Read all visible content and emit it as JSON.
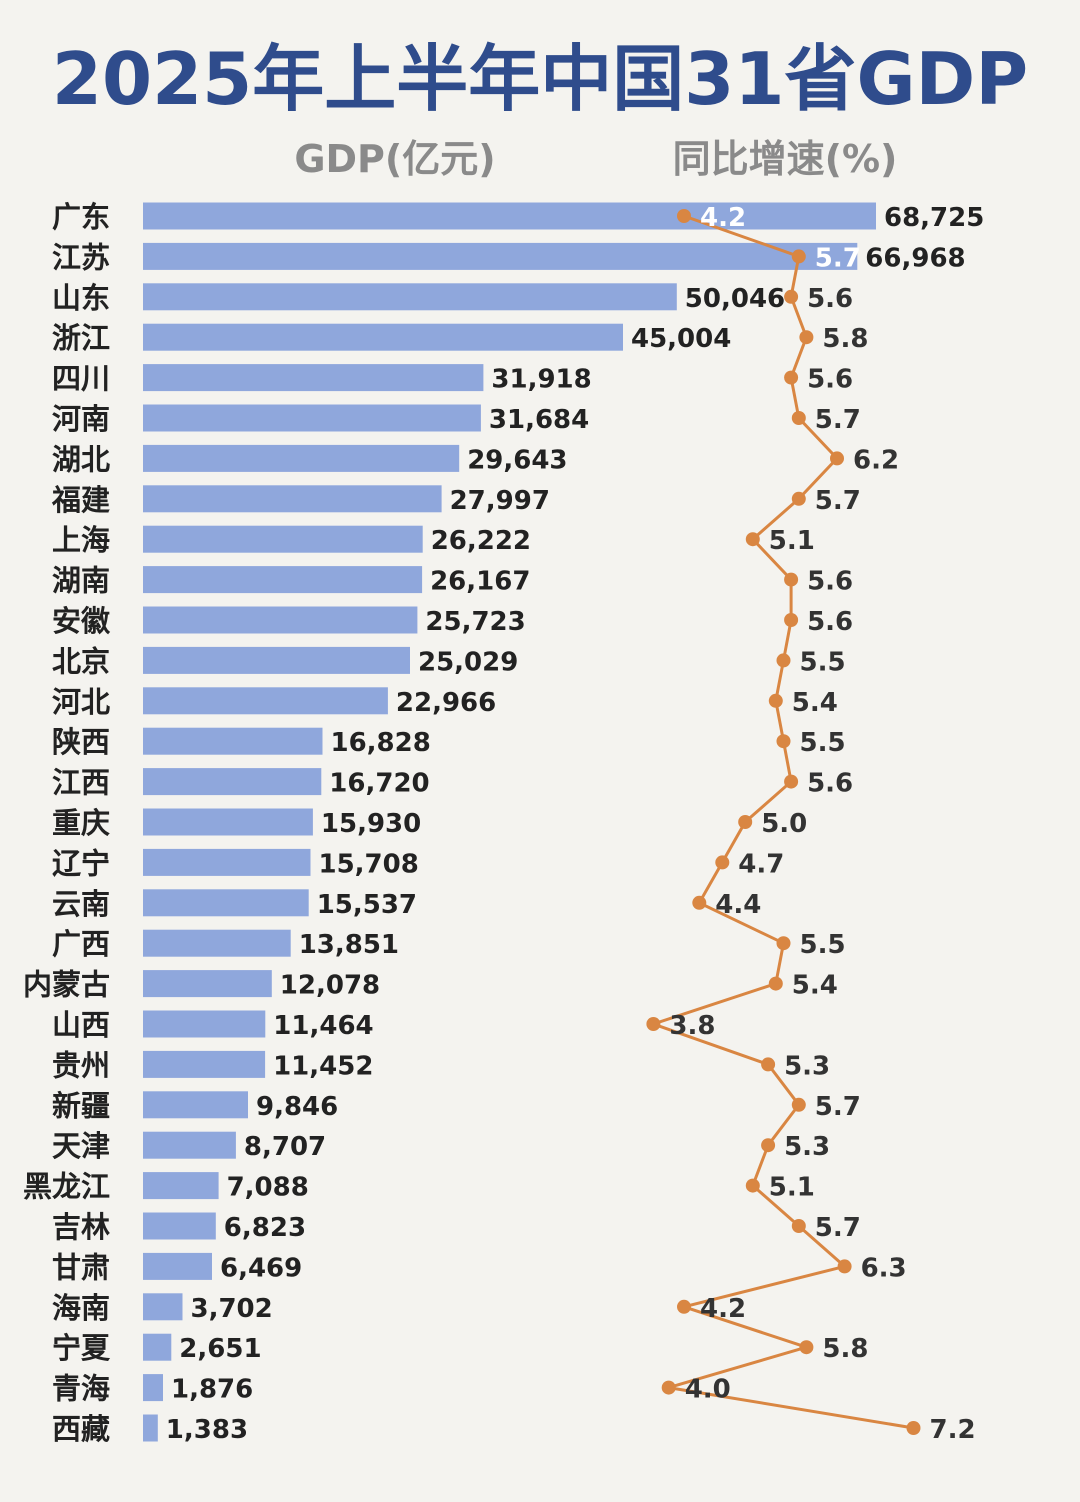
{
  "chart_data": {
    "type": "bar",
    "title": "2025年上半年中国31省GDP",
    "bar_header": "GDP(亿元)",
    "line_header": "同比增速(%)",
    "colors": {
      "bar": "#8fa7dc",
      "line": "#d98642",
      "title": "#2f4c8c"
    },
    "categories": [
      "广东",
      "江苏",
      "山东",
      "浙江",
      "四川",
      "河南",
      "湖北",
      "福建",
      "上海",
      "湖南",
      "安徽",
      "北京",
      "河北",
      "陕西",
      "江西",
      "重庆",
      "辽宁",
      "云南",
      "广西",
      "内蒙古",
      "山西",
      "贵州",
      "新疆",
      "天津",
      "黑龙江",
      "吉林",
      "甘肃",
      "海南",
      "宁夏",
      "青海",
      "西藏"
    ],
    "series": [
      {
        "name": "GDP(亿元)",
        "type": "bar",
        "values": [
          68725,
          66968,
          50046,
          45004,
          31918,
          31684,
          29643,
          27997,
          26222,
          26167,
          25723,
          25029,
          22966,
          16828,
          16720,
          15930,
          15708,
          15537,
          13851,
          12078,
          11464,
          11452,
          9846,
          8707,
          7088,
          6823,
          6469,
          3702,
          2651,
          1876,
          1383
        ],
        "labels": [
          "68,725",
          "66,968",
          "50,046",
          "45,004",
          "31,918",
          "31,684",
          "29,643",
          "27,997",
          "26,222",
          "26,167",
          "25,723",
          "25,029",
          "22,966",
          "16,828",
          "16,720",
          "15,930",
          "15,708",
          "15,537",
          "13,851",
          "12,078",
          "11,464",
          "11,452",
          "9,846",
          "8,707",
          "7,088",
          "6,823",
          "6,469",
          "3,702",
          "2,651",
          "1,876",
          "1,383"
        ]
      },
      {
        "name": "同比增速(%)",
        "type": "line",
        "values": [
          4.2,
          5.7,
          5.6,
          5.8,
          5.6,
          5.7,
          6.2,
          5.7,
          5.1,
          5.6,
          5.6,
          5.5,
          5.4,
          5.5,
          5.6,
          5.0,
          4.7,
          4.4,
          5.5,
          5.4,
          3.8,
          5.3,
          5.7,
          5.3,
          5.1,
          5.7,
          6.3,
          4.2,
          5.8,
          4.0,
          7.2
        ],
        "labels": [
          "4.2",
          "5.7",
          "5.6",
          "5.8",
          "5.6",
          "5.7",
          "6.2",
          "5.7",
          "5.1",
          "5.6",
          "5.6",
          "5.5",
          "5.4",
          "5.5",
          "5.6",
          "5.0",
          "4.7",
          "4.4",
          "5.5",
          "5.4",
          "3.8",
          "5.3",
          "5.7",
          "5.3",
          "5.1",
          "5.7",
          "6.3",
          "4.2",
          "5.8",
          "4.0",
          "7.2"
        ]
      }
    ],
    "legend": "none",
    "grid": false
  }
}
